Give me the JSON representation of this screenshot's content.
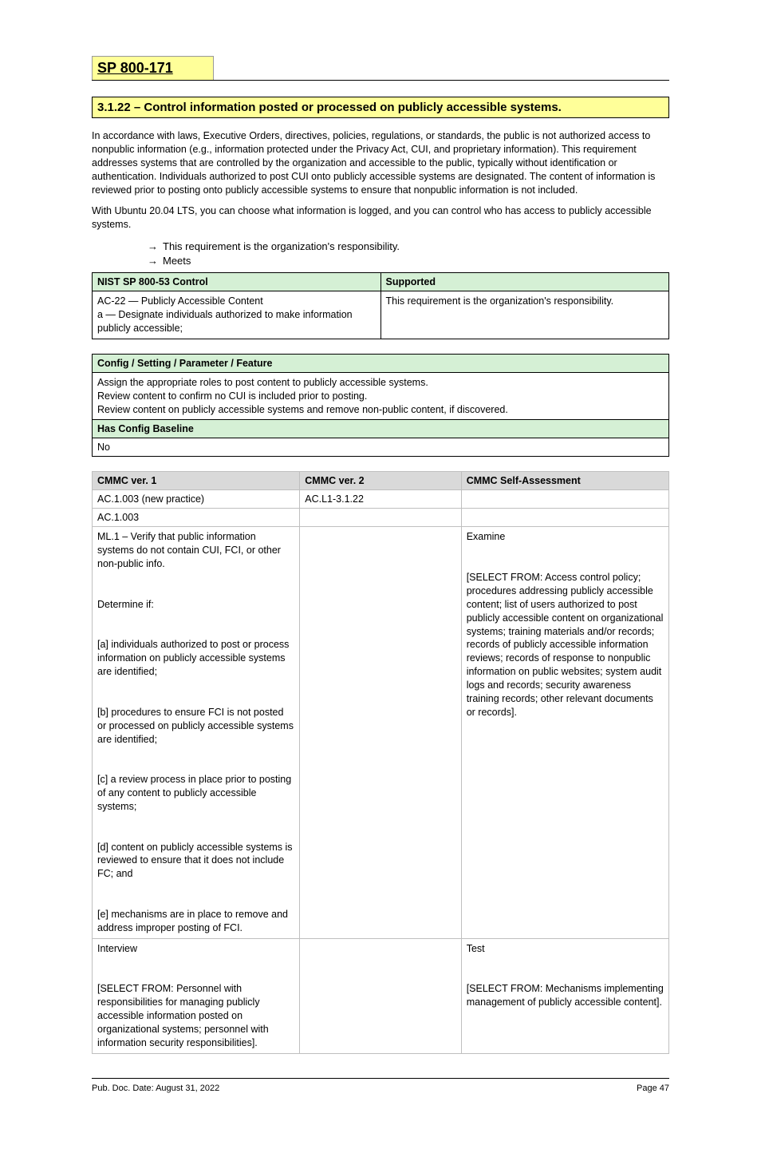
{
  "colors": {
    "highlight_yellow": "#ffff99",
    "header_green": "#d5f0d5",
    "header_grey": "#d9d9d9",
    "border_black": "#000000",
    "border_grey": "#bfbfbf",
    "background": "#ffffff",
    "text": "#000000"
  },
  "typography": {
    "base_font": "Arial",
    "base_size_pt": 9,
    "title_size_pt": 14,
    "banner_size_pt": 11
  },
  "title": "SP 800-171",
  "banner": "3.1.22 – Control information posted or processed on publicly accessible systems.",
  "intro": [
    "In accordance with laws, Executive Orders, directives, policies, regulations, or standards, the public is not authorized access to nonpublic information (e.g., information protected under the Privacy Act, CUI, and proprietary information). This requirement addresses systems that are controlled by the organization and accessible to the public, typically without identification or authentication. Individuals authorized to post CUI onto publicly accessible systems are designated. The content of information is reviewed prior to posting onto publicly accessible systems to ensure that nonpublic information is not included.",
    "With Ubuntu 20.04 LTS, you can choose what information is logged, and you can control who has access to publicly accessible systems."
  ],
  "arrows": [
    "This requirement is the organization's responsibility.",
    "Meets"
  ],
  "table_green_1": {
    "headers": [
      "NIST SP 800-53 Control",
      "Supported"
    ],
    "rows": [
      [
        "AC-22 — Publicly Accessible Content\na — Designate individuals authorized to make information publicly accessible;",
        "This requirement is the organization's responsibility."
      ]
    ]
  },
  "table_green_2": {
    "rows": [
      {
        "header": "Config / Setting / Parameter / Feature",
        "body": "Assign the appropriate roles to post content to publicly accessible systems.\nReview content to confirm no CUI is included prior to posting.\nReview content on publicly accessible systems and remove non-public content, if discovered."
      },
      {
        "header": "Has Config Baseline",
        "body": "No"
      }
    ]
  },
  "table_grey": {
    "columns": [
      "CMMC ver. 1",
      "CMMC ver. 2",
      "CMMC Self-Assessment"
    ],
    "col_widths_pct": [
      36,
      28,
      36
    ],
    "rows": [
      [
        "AC.1.003 (new practice)",
        "AC.L1-3.1.22",
        ""
      ],
      [
        "AC.1.003",
        "",
        ""
      ],
      [
        "ML.1 – Verify that public information systems do not contain CUI, FCI, or other non-public info.\n\nDetermine if:\n\n[a] individuals authorized to post or process information on publicly accessible systems are identified;\n\n[b] procedures to ensure FCI is not posted or processed on publicly accessible systems are identified;\n\n[c] a review process in place prior to posting of any content to publicly accessible systems;\n\n[d] content on publicly accessible systems is reviewed to ensure that it does not include FC; and\n\n[e] mechanisms are in place to remove and address improper posting of FCI.",
        "",
        "Examine\n\n[SELECT FROM: Access control policy; procedures addressing publicly accessible content; list of users authorized to post publicly accessible content on organizational systems; training materials and/or records; records of publicly accessible information reviews; records of response to nonpublic information on public websites; system audit logs and records; security awareness training records; other relevant documents or records]."
      ],
      [
        "Interview\n\n[SELECT FROM: Personnel with responsibilities for managing publicly accessible information posted on organizational systems; personnel with information security responsibilities].",
        "",
        "Test\n\n[SELECT FROM: Mechanisms implementing management of publicly accessible content]."
      ]
    ]
  },
  "footer": {
    "left": "Pub. Doc. Date: August 31, 2022",
    "right": "Page  47"
  }
}
